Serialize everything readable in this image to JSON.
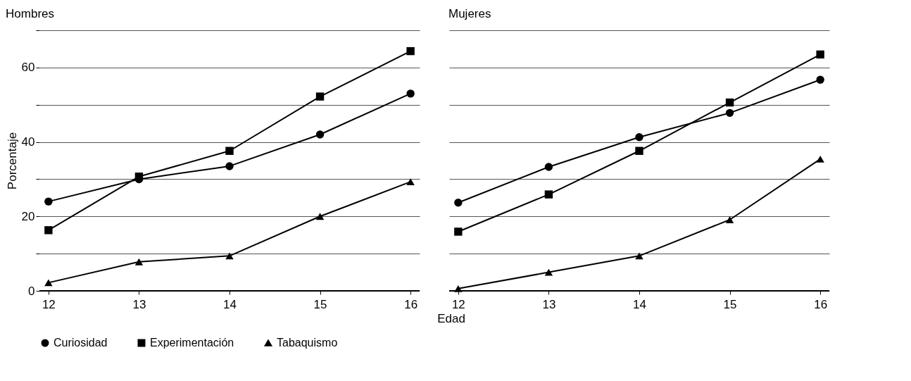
{
  "chart_data": [
    {
      "type": "line",
      "title": "Hombres",
      "ylabel": "Porcentaje",
      "xlabel": "Edad",
      "x": [
        12,
        13,
        14,
        15,
        16
      ],
      "xlim": [
        11.9,
        16.1
      ],
      "xticks": [
        12,
        13,
        14,
        15,
        16
      ],
      "ylim": [
        0,
        70
      ],
      "yticks": [
        0,
        {
          "value": 10,
          "label": null
        },
        20,
        {
          "value": 30,
          "label": null
        },
        40,
        {
          "value": 50,
          "label": null
        },
        60,
        {
          "value": 70,
          "label": null
        }
      ],
      "grid": "y",
      "legend": "bottom",
      "series": [
        {
          "name": "Curiosidad",
          "color": "#000000",
          "marker": "circle",
          "values": [
            24,
            30,
            33.5,
            42,
            53
          ]
        },
        {
          "name": "Experimentación",
          "color": "#000000",
          "marker": "square",
          "values": [
            16.3,
            30.7,
            37.6,
            52.2,
            64.4
          ]
        },
        {
          "name": "Tabaquismo",
          "color": "#000000",
          "marker": "triangle",
          "values": [
            2.2,
            7.8,
            9.4,
            20,
            29.3
          ]
        }
      ]
    },
    {
      "type": "line",
      "title": "Mujeres",
      "x": [
        12,
        13,
        14,
        15,
        16
      ],
      "xlim": [
        11.9,
        16.1
      ],
      "xticks": [
        12,
        13,
        14,
        15,
        16
      ],
      "ylim": [
        0,
        70
      ],
      "yticks": [
        0,
        {
          "value": 10,
          "label": null
        },
        20,
        {
          "value": 30,
          "label": null
        },
        40,
        {
          "value": 50,
          "label": null
        },
        60,
        {
          "value": 70,
          "label": null
        }
      ],
      "grid": "y",
      "legend": "bottom",
      "tick_labels": "x",
      "series": [
        {
          "name": "Curiosidad",
          "color": "#000000",
          "marker": "circle",
          "values": [
            23.7,
            33.3,
            41.3,
            47.8,
            56.7
          ]
        },
        {
          "name": "Experimentación",
          "color": "#000000",
          "marker": "square",
          "values": [
            15.9,
            25.9,
            37.6,
            50.6,
            63.5
          ]
        },
        {
          "name": "Tabaquismo",
          "color": "#000000",
          "marker": "triangle",
          "values": [
            0.6,
            5,
            9.4,
            19.1,
            35.4
          ]
        }
      ]
    }
  ]
}
